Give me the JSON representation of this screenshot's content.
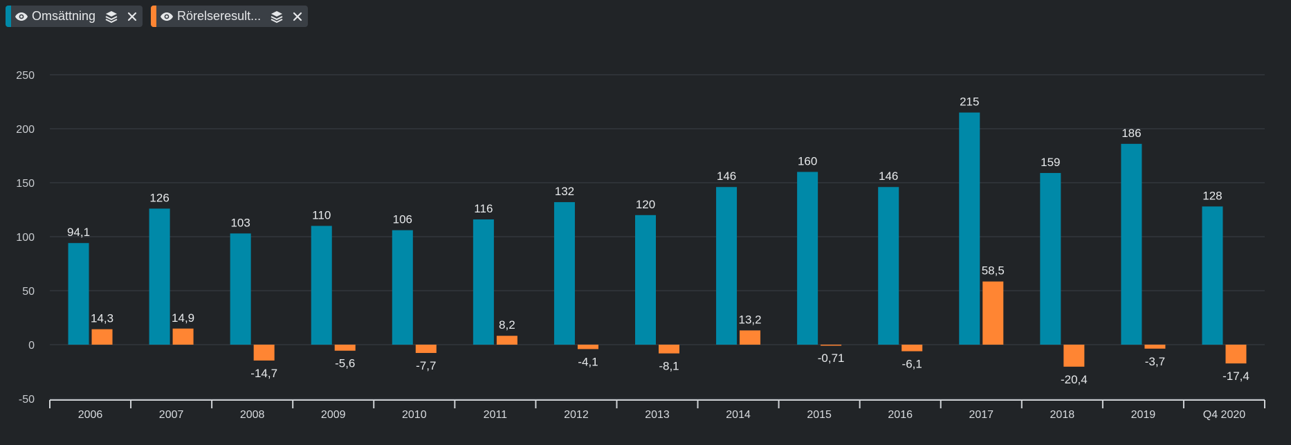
{
  "legend": [
    {
      "label": "Omsättning",
      "color": "#0089a8"
    },
    {
      "label": "Rörelseresult...",
      "color": "#ff8533"
    }
  ],
  "chart_data": {
    "type": "bar",
    "categories": [
      "2006",
      "2007",
      "2008",
      "2009",
      "2010",
      "2011",
      "2012",
      "2013",
      "2014",
      "2015",
      "2016",
      "2017",
      "2018",
      "2019",
      "Q4 2020"
    ],
    "series": [
      {
        "name": "Omsättning",
        "color": "#0089a8",
        "values": [
          94.1,
          126,
          103,
          110,
          106,
          116,
          132,
          120,
          146,
          160,
          146,
          215,
          159,
          186,
          128
        ],
        "labels": [
          "94,1",
          "126",
          "103",
          "110",
          "106",
          "116",
          "132",
          "120",
          "146",
          "160",
          "146",
          "215",
          "159",
          "186",
          "128"
        ]
      },
      {
        "name": "Rörelseresult...",
        "color": "#ff8533",
        "values": [
          14.3,
          14.9,
          -14.7,
          -5.6,
          -7.7,
          8.2,
          -4.1,
          -8.1,
          13.2,
          -0.71,
          -6.1,
          58.5,
          -20.4,
          -3.7,
          -17.4
        ],
        "labels": [
          "14,3",
          "14,9",
          "-14,7",
          "-5,6",
          "-7,7",
          "8,2",
          "-4,1",
          "-8,1",
          "13,2",
          "-0,71",
          "-6,1",
          "58,5",
          "-20,4",
          "-3,7",
          "-17,4"
        ]
      }
    ],
    "ylim": [
      -50,
      250
    ],
    "yticks": [
      -50,
      0,
      50,
      100,
      150,
      200,
      250
    ],
    "grid": true,
    "legend_position": "top-left"
  }
}
